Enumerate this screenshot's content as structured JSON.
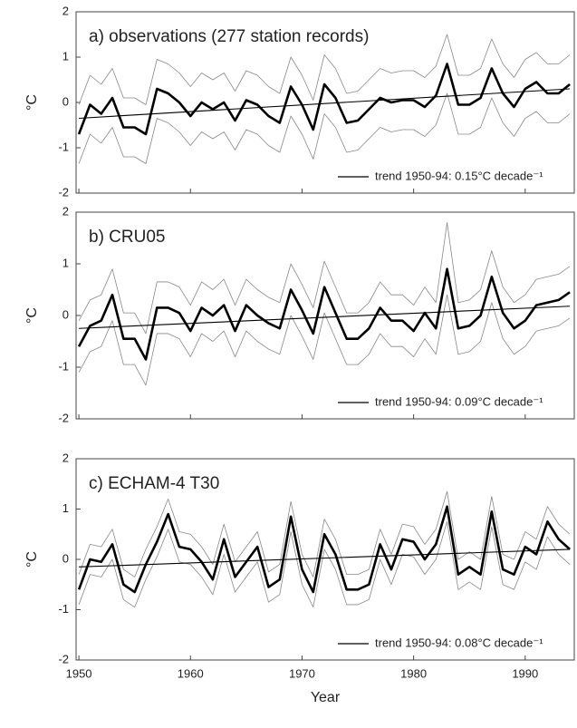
{
  "chart_data": [
    {
      "type": "line",
      "title": "a) observations (277 station records)",
      "ylabel": "°C",
      "x": [
        1950,
        1951,
        1952,
        1953,
        1954,
        1955,
        1956,
        1957,
        1958,
        1959,
        1960,
        1961,
        1962,
        1963,
        1964,
        1965,
        1966,
        1967,
        1968,
        1969,
        1970,
        1971,
        1972,
        1973,
        1974,
        1975,
        1976,
        1977,
        1978,
        1979,
        1980,
        1981,
        1982,
        1983,
        1984,
        1985,
        1986,
        1987,
        1988,
        1989,
        1990,
        1991,
        1992,
        1993,
        1994
      ],
      "series": [
        {
          "color": "#888888",
          "values": [
            -0.05,
            0.6,
            0.4,
            0.75,
            0.1,
            0.1,
            -0.05,
            0.95,
            0.85,
            0.65,
            0.35,
            0.65,
            0.5,
            0.65,
            0.25,
            0.7,
            0.6,
            0.35,
            0.2,
            1.0,
            0.6,
            0.05,
            1.05,
            0.75,
            0.2,
            0.25,
            0.5,
            0.75,
            0.65,
            0.7,
            0.7,
            0.55,
            0.8,
            1.5,
            0.6,
            0.6,
            0.75,
            1.4,
            0.85,
            0.55,
            0.95,
            1.1,
            0.85,
            0.85,
            1.05
          ]
        },
        {
          "color": "#888888",
          "values": [
            -1.35,
            -0.7,
            -0.9,
            -0.55,
            -1.2,
            -1.2,
            -1.35,
            -0.35,
            -0.45,
            -0.65,
            -0.95,
            -0.65,
            -0.8,
            -0.65,
            -1.05,
            -0.6,
            -0.7,
            -0.95,
            -1.1,
            -0.3,
            -0.7,
            -1.25,
            -0.25,
            -0.55,
            -1.1,
            -1.05,
            -0.8,
            -0.55,
            -0.65,
            -0.6,
            -0.6,
            -0.75,
            -0.5,
            0.2,
            -0.7,
            -0.7,
            -0.55,
            0.1,
            -0.45,
            -0.75,
            -0.35,
            -0.2,
            -0.45,
            -0.45,
            -0.25
          ]
        },
        {
          "color": "#000000",
          "values": [
            -0.7,
            -0.05,
            -0.25,
            0.1,
            -0.55,
            -0.55,
            -0.7,
            0.3,
            0.2,
            0.0,
            -0.3,
            0.0,
            -0.15,
            0.0,
            -0.4,
            0.05,
            -0.05,
            -0.3,
            -0.45,
            0.35,
            -0.05,
            -0.6,
            0.4,
            0.1,
            -0.45,
            -0.4,
            -0.15,
            0.1,
            0.0,
            0.05,
            0.05,
            -0.1,
            0.15,
            0.85,
            -0.05,
            -0.05,
            0.1,
            0.75,
            0.2,
            -0.1,
            0.3,
            0.45,
            0.2,
            0.2,
            0.4
          ]
        },
        {
          "name": "trend 1950-94: 0.15°C decade⁻¹",
          "color": "#000000",
          "x": [
            1950,
            1994
          ],
          "values": [
            -0.35,
            0.3
          ]
        }
      ],
      "xlim": [
        1949.75,
        1994.4
      ],
      "ylim": [
        -2,
        2
      ],
      "xticks": [
        1950,
        1960,
        1970,
        1980,
        1990
      ],
      "yticks": [
        -2,
        -1,
        0,
        1,
        2
      ]
    },
    {
      "type": "line",
      "title": "b) CRU05",
      "ylabel": "°C",
      "x": [
        1950,
        1951,
        1952,
        1953,
        1954,
        1955,
        1956,
        1957,
        1958,
        1959,
        1960,
        1961,
        1962,
        1963,
        1964,
        1965,
        1966,
        1967,
        1968,
        1969,
        1970,
        1971,
        1972,
        1973,
        1974,
        1975,
        1976,
        1977,
        1978,
        1979,
        1980,
        1981,
        1982,
        1983,
        1984,
        1985,
        1986,
        1987,
        1988,
        1989,
        1990,
        1991,
        1992,
        1993,
        1994
      ],
      "series": [
        {
          "color": "#888888",
          "values": [
            -0.1,
            0.3,
            0.4,
            0.9,
            0.05,
            0.05,
            -0.35,
            0.65,
            0.65,
            0.55,
            0.2,
            0.65,
            0.5,
            0.7,
            0.2,
            0.7,
            0.5,
            0.35,
            0.25,
            1.0,
            0.6,
            0.15,
            1.05,
            0.55,
            0.05,
            0.05,
            0.25,
            0.65,
            0.4,
            0.4,
            0.2,
            0.55,
            0.25,
            1.8,
            0.25,
            0.3,
            0.5,
            1.25,
            0.55,
            0.25,
            0.4,
            0.7,
            0.75,
            0.8,
            0.95
          ]
        },
        {
          "color": "#888888",
          "values": [
            -1.1,
            -0.7,
            -0.6,
            -0.1,
            -0.95,
            -0.95,
            -1.35,
            -0.35,
            -0.35,
            -0.45,
            -0.8,
            -0.35,
            -0.5,
            -0.3,
            -0.8,
            -0.3,
            -0.5,
            -0.65,
            -0.75,
            0.0,
            -0.4,
            -0.85,
            0.05,
            -0.45,
            -0.95,
            -0.95,
            -0.75,
            -0.35,
            -0.6,
            -0.6,
            -0.8,
            -0.45,
            -0.75,
            0.4,
            -0.75,
            -0.7,
            -0.5,
            0.25,
            -0.45,
            -0.75,
            -0.6,
            -0.3,
            -0.25,
            -0.2,
            -0.05
          ]
        },
        {
          "color": "#000000",
          "values": [
            -0.6,
            -0.2,
            -0.1,
            0.4,
            -0.45,
            -0.45,
            -0.85,
            0.15,
            0.15,
            0.05,
            -0.3,
            0.15,
            0.0,
            0.2,
            -0.3,
            0.2,
            0.0,
            -0.15,
            -0.25,
            0.5,
            0.1,
            -0.35,
            0.55,
            0.05,
            -0.45,
            -0.45,
            -0.25,
            0.15,
            -0.1,
            -0.1,
            -0.3,
            0.05,
            -0.25,
            0.9,
            -0.25,
            -0.2,
            0.0,
            0.75,
            0.05,
            -0.25,
            -0.1,
            0.2,
            0.25,
            0.3,
            0.45
          ]
        },
        {
          "name": "trend 1950-94: 0.09°C decade⁻¹",
          "color": "#000000",
          "x": [
            1950,
            1994
          ],
          "values": [
            -0.25,
            0.18
          ]
        }
      ],
      "xlim": [
        1949.75,
        1994.4
      ],
      "ylim": [
        -2,
        2
      ],
      "xticks": [
        1950,
        1960,
        1970,
        1980,
        1990
      ],
      "yticks": [
        -2,
        -1,
        0,
        1,
        2
      ]
    },
    {
      "type": "line",
      "title": "c) ECHAM-4 T30",
      "ylabel": "°C",
      "xlabel": "Year",
      "x": [
        1950,
        1951,
        1952,
        1953,
        1954,
        1955,
        1956,
        1957,
        1958,
        1959,
        1960,
        1961,
        1962,
        1963,
        1964,
        1965,
        1966,
        1967,
        1968,
        1969,
        1970,
        1971,
        1972,
        1973,
        1974,
        1975,
        1976,
        1977,
        1978,
        1979,
        1980,
        1981,
        1982,
        1983,
        1984,
        1985,
        1986,
        1987,
        1988,
        1989,
        1990,
        1991,
        1992,
        1993,
        1994
      ],
      "series": [
        {
          "color": "#888888",
          "values": [
            -0.3,
            0.3,
            0.25,
            0.6,
            -0.2,
            -0.35,
            0.2,
            0.65,
            1.2,
            0.55,
            0.5,
            0.25,
            -0.1,
            0.7,
            -0.05,
            0.25,
            0.55,
            -0.25,
            -0.1,
            1.15,
            0.1,
            -0.35,
            0.8,
            0.4,
            -0.3,
            -0.3,
            -0.2,
            0.6,
            0.1,
            0.7,
            0.65,
            0.3,
            0.6,
            1.35,
            0.0,
            0.15,
            0.0,
            1.25,
            0.1,
            0.0,
            0.55,
            0.4,
            1.05,
            0.7,
            0.5
          ]
        },
        {
          "color": "#888888",
          "values": [
            -0.9,
            -0.3,
            -0.35,
            0.0,
            -0.8,
            -0.95,
            -0.4,
            0.05,
            0.6,
            -0.05,
            -0.1,
            -0.35,
            -0.7,
            0.1,
            -0.65,
            -0.35,
            -0.05,
            -0.85,
            -0.7,
            0.55,
            -0.5,
            -0.95,
            0.2,
            -0.2,
            -0.9,
            -0.9,
            -0.8,
            0.0,
            -0.5,
            0.1,
            0.05,
            -0.3,
            0.0,
            0.75,
            -0.6,
            -0.45,
            -0.6,
            0.65,
            -0.5,
            -0.6,
            -0.05,
            -0.2,
            0.45,
            0.1,
            -0.1
          ]
        },
        {
          "color": "#000000",
          "values": [
            -0.6,
            0.0,
            -0.05,
            0.3,
            -0.5,
            -0.65,
            -0.1,
            0.35,
            0.9,
            0.25,
            0.2,
            -0.05,
            -0.4,
            0.4,
            -0.35,
            -0.05,
            0.25,
            -0.55,
            -0.4,
            0.85,
            -0.2,
            -0.65,
            0.5,
            0.1,
            -0.6,
            -0.6,
            -0.5,
            0.3,
            -0.2,
            0.4,
            0.35,
            0.0,
            0.3,
            1.05,
            -0.3,
            -0.15,
            -0.3,
            0.95,
            -0.2,
            -0.3,
            0.25,
            0.1,
            0.75,
            0.4,
            0.2
          ]
        },
        {
          "name": "trend 1950-94: 0.08°C decade⁻¹",
          "color": "#000000",
          "x": [
            1950,
            1994
          ],
          "values": [
            -0.15,
            0.2
          ]
        }
      ],
      "xlim": [
        1949.75,
        1994.4
      ],
      "ylim": [
        -2,
        2
      ],
      "xticks": [
        1950,
        1960,
        1970,
        1980,
        1990
      ],
      "yticks": [
        -2,
        -1,
        0,
        1,
        2
      ]
    }
  ]
}
